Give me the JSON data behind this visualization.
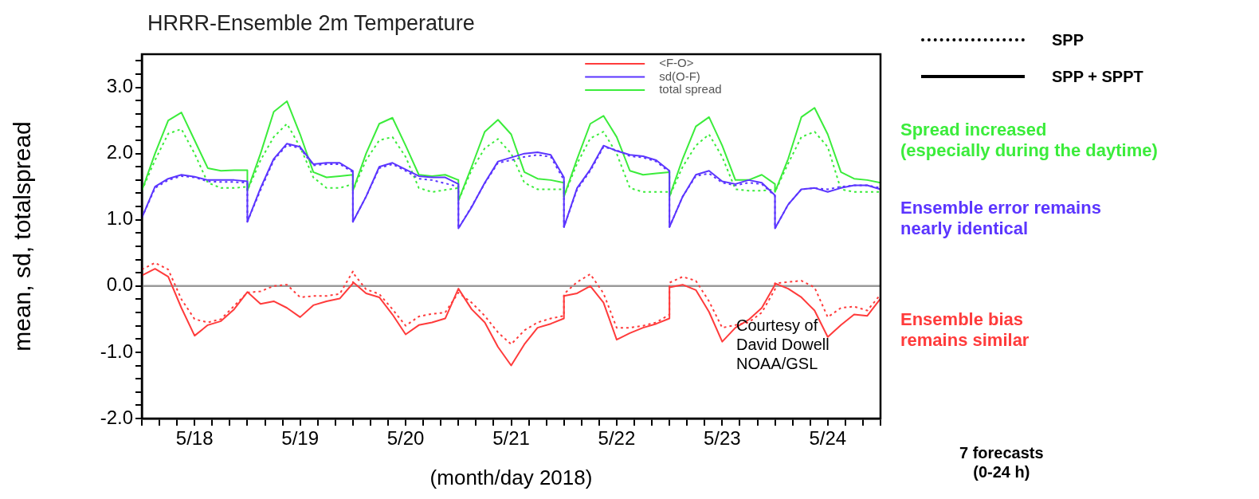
{
  "chart_data": {
    "type": "line",
    "title": "HRRR-Ensemble 2m Temperature",
    "xlabel": "(month/day 2018)",
    "ylabel": "mean, sd, totalspread",
    "x": [
      "2018-05-18T00:00",
      "2018-05-18T03:00",
      "2018-05-18T06:00",
      "2018-05-18T09:00",
      "2018-05-18T12:00",
      "2018-05-18T15:00",
      "2018-05-18T18:00",
      "2018-05-18T21:00",
      "2018-05-19T00:00",
      "2018-05-19T00:00",
      "2018-05-19T03:00",
      "2018-05-19T06:00",
      "2018-05-19T09:00",
      "2018-05-19T12:00",
      "2018-05-19T15:00",
      "2018-05-19T18:00",
      "2018-05-19T21:00",
      "2018-05-20T00:00",
      "2018-05-20T00:00",
      "2018-05-20T03:00",
      "2018-05-20T06:00",
      "2018-05-20T09:00",
      "2018-05-20T12:00",
      "2018-05-20T15:00",
      "2018-05-20T18:00",
      "2018-05-20T21:00",
      "2018-05-21T00:00",
      "2018-05-21T00:00",
      "2018-05-21T03:00",
      "2018-05-21T06:00",
      "2018-05-21T09:00",
      "2018-05-21T12:00",
      "2018-05-21T15:00",
      "2018-05-21T18:00",
      "2018-05-21T21:00",
      "2018-05-22T00:00",
      "2018-05-22T00:00",
      "2018-05-22T03:00",
      "2018-05-22T06:00",
      "2018-05-22T09:00",
      "2018-05-22T12:00",
      "2018-05-22T15:00",
      "2018-05-22T18:00",
      "2018-05-22T21:00",
      "2018-05-23T00:00",
      "2018-05-23T00:00",
      "2018-05-23T03:00",
      "2018-05-23T06:00",
      "2018-05-23T09:00",
      "2018-05-23T12:00",
      "2018-05-23T15:00",
      "2018-05-23T18:00",
      "2018-05-23T21:00",
      "2018-05-24T00:00",
      "2018-05-24T00:00",
      "2018-05-24T03:00",
      "2018-05-24T06:00",
      "2018-05-24T09:00",
      "2018-05-24T12:00",
      "2018-05-24T15:00",
      "2018-05-24T18:00",
      "2018-05-24T21:00",
      "2018-05-25T00:00"
    ],
    "series": [
      {
        "name": "<F-O>",
        "color": "#ff3b3b",
        "line_style": "solid",
        "values": [
          0.16,
          0.26,
          0.14,
          -0.33,
          -0.75,
          -0.59,
          -0.53,
          -0.35,
          -0.09,
          -0.09,
          -0.27,
          -0.23,
          -0.33,
          -0.47,
          -0.29,
          -0.23,
          -0.19,
          0.04,
          0.06,
          -0.11,
          -0.17,
          -0.43,
          -0.73,
          -0.59,
          -0.55,
          -0.49,
          -0.04,
          -0.04,
          -0.35,
          -0.55,
          -0.92,
          -1.2,
          -0.88,
          -0.63,
          -0.57,
          -0.49,
          -0.15,
          -0.11,
          0.0,
          -0.25,
          -0.81,
          -0.71,
          -0.63,
          -0.57,
          -0.49,
          -0.02,
          0.02,
          -0.06,
          -0.39,
          -0.84,
          -0.63,
          -0.51,
          -0.33,
          0.02,
          0.04,
          -0.04,
          -0.17,
          -0.37,
          -0.77,
          -0.59,
          -0.43,
          -0.45,
          -0.19
        ]
      },
      {
        "name": "sd(O-F)",
        "color": "#5b35ff",
        "line_style": "solid",
        "values": [
          1.03,
          1.5,
          1.62,
          1.68,
          1.65,
          1.6,
          1.6,
          1.6,
          1.58,
          0.97,
          1.48,
          1.92,
          2.15,
          2.1,
          1.84,
          1.86,
          1.86,
          1.74,
          0.97,
          1.35,
          1.8,
          1.86,
          1.76,
          1.66,
          1.64,
          1.64,
          1.54,
          0.87,
          1.19,
          1.56,
          1.88,
          1.94,
          2.0,
          2.02,
          1.98,
          1.64,
          0.89,
          1.48,
          1.76,
          2.12,
          2.04,
          1.98,
          1.96,
          1.9,
          1.74,
          0.89,
          1.35,
          1.68,
          1.74,
          1.58,
          1.54,
          1.6,
          1.56,
          1.37,
          0.87,
          1.23,
          1.46,
          1.48,
          1.42,
          1.48,
          1.52,
          1.52,
          1.46
        ]
      },
      {
        "name": "total spread",
        "color": "#3bec3b",
        "line_style": "solid",
        "values": [
          1.44,
          2.0,
          2.5,
          2.62,
          2.2,
          1.78,
          1.74,
          1.75,
          1.75,
          1.44,
          2.0,
          2.63,
          2.79,
          2.29,
          1.72,
          1.64,
          1.66,
          1.68,
          1.44,
          2.0,
          2.45,
          2.54,
          2.12,
          1.68,
          1.66,
          1.68,
          1.6,
          1.29,
          1.8,
          2.33,
          2.51,
          2.29,
          1.72,
          1.62,
          1.6,
          1.56,
          1.35,
          1.92,
          2.45,
          2.57,
          2.25,
          1.74,
          1.68,
          1.7,
          1.72,
          1.35,
          1.92,
          2.41,
          2.55,
          2.12,
          1.6,
          1.6,
          1.68,
          1.54,
          1.42,
          1.92,
          2.55,
          2.69,
          2.29,
          1.72,
          1.62,
          1.6,
          1.56
        ]
      },
      {
        "color": "#ff3b3b",
        "line_style": "dotted",
        "values": [
          0.25,
          0.35,
          0.25,
          -0.2,
          -0.5,
          -0.55,
          -0.5,
          -0.3,
          -0.1,
          -0.1,
          -0.08,
          0.0,
          0.02,
          -0.17,
          -0.15,
          -0.15,
          -0.12,
          0.22,
          0.2,
          -0.05,
          -0.12,
          -0.35,
          -0.6,
          -0.46,
          -0.42,
          -0.4,
          -0.1,
          -0.1,
          -0.25,
          -0.45,
          -0.7,
          -0.88,
          -0.67,
          -0.55,
          -0.49,
          -0.45,
          -0.12,
          0.06,
          0.18,
          -0.11,
          -0.63,
          -0.63,
          -0.6,
          -0.55,
          -0.43,
          0.05,
          0.14,
          0.08,
          -0.23,
          -0.63,
          -0.59,
          -0.55,
          -0.4,
          -0.05,
          0.04,
          0.06,
          0.08,
          -0.02,
          -0.47,
          -0.33,
          -0.31,
          -0.37,
          -0.13
        ]
      },
      {
        "color": "#5b35ff",
        "line_style": "dotted",
        "values": [
          1.03,
          1.48,
          1.6,
          1.66,
          1.64,
          1.58,
          1.57,
          1.57,
          1.56,
          0.97,
          1.45,
          1.9,
          2.13,
          2.08,
          1.82,
          1.84,
          1.84,
          1.72,
          0.97,
          1.35,
          1.78,
          1.84,
          1.74,
          1.62,
          1.6,
          1.55,
          1.5,
          0.87,
          1.2,
          1.55,
          1.86,
          1.9,
          1.95,
          1.98,
          1.95,
          1.6,
          0.89,
          1.46,
          1.74,
          2.1,
          2.05,
          1.96,
          1.94,
          1.88,
          1.72,
          0.89,
          1.35,
          1.66,
          1.7,
          1.56,
          1.52,
          1.56,
          1.54,
          1.36,
          0.87,
          1.23,
          1.46,
          1.48,
          1.46,
          1.5,
          1.52,
          1.52,
          1.48
        ]
      },
      {
        "color": "#3bec3b",
        "line_style": "dotted",
        "values": [
          1.44,
          1.9,
          2.3,
          2.37,
          2.0,
          1.56,
          1.48,
          1.48,
          1.5,
          1.44,
          1.9,
          2.25,
          2.45,
          2.1,
          1.64,
          1.48,
          1.48,
          1.54,
          1.44,
          1.9,
          2.2,
          2.25,
          1.95,
          1.48,
          1.42,
          1.45,
          1.48,
          1.29,
          1.75,
          2.08,
          2.22,
          2.0,
          1.56,
          1.46,
          1.46,
          1.46,
          1.35,
          1.85,
          2.23,
          2.33,
          2.0,
          1.48,
          1.42,
          1.42,
          1.42,
          1.35,
          1.8,
          2.12,
          2.29,
          1.95,
          1.46,
          1.44,
          1.44,
          1.46,
          1.42,
          1.85,
          2.25,
          2.33,
          2.1,
          1.46,
          1.42,
          1.42,
          1.42
        ]
      }
    ],
    "xlim": [
      "2018-05-18T00:00",
      "2018-05-25T00:00"
    ],
    "xticks": [
      {
        "value": "2018-05-18T00:00",
        "label": null
      },
      {
        "value": "2018-05-18T04:00",
        "label": null
      },
      {
        "value": "2018-05-18T08:00",
        "label": null
      },
      {
        "value": "2018-05-18T12:00",
        "label": "5/18"
      },
      {
        "value": "2018-05-18T16:00",
        "label": null
      },
      {
        "value": "2018-05-18T20:00",
        "label": null
      },
      {
        "value": "2018-05-19T00:00",
        "label": null
      },
      {
        "value": "2018-05-19T04:00",
        "label": null
      },
      {
        "value": "2018-05-19T08:00",
        "label": null
      },
      {
        "value": "2018-05-19T12:00",
        "label": "5/19"
      },
      {
        "value": "2018-05-19T16:00",
        "label": null
      },
      {
        "value": "2018-05-19T20:00",
        "label": null
      },
      {
        "value": "2018-05-20T00:00",
        "label": null
      },
      {
        "value": "2018-05-20T04:00",
        "label": null
      },
      {
        "value": "2018-05-20T08:00",
        "label": null
      },
      {
        "value": "2018-05-20T12:00",
        "label": "5/20"
      },
      {
        "value": "2018-05-20T16:00",
        "label": null
      },
      {
        "value": "2018-05-20T20:00",
        "label": null
      },
      {
        "value": "2018-05-21T00:00",
        "label": null
      },
      {
        "value": "2018-05-21T04:00",
        "label": null
      },
      {
        "value": "2018-05-21T08:00",
        "label": null
      },
      {
        "value": "2018-05-21T12:00",
        "label": "5/21"
      },
      {
        "value": "2018-05-21T16:00",
        "label": null
      },
      {
        "value": "2018-05-21T20:00",
        "label": null
      },
      {
        "value": "2018-05-22T00:00",
        "label": null
      },
      {
        "value": "2018-05-22T04:00",
        "label": null
      },
      {
        "value": "2018-05-22T08:00",
        "label": null
      },
      {
        "value": "2018-05-22T12:00",
        "label": "5/22"
      },
      {
        "value": "2018-05-22T16:00",
        "label": null
      },
      {
        "value": "2018-05-22T20:00",
        "label": null
      },
      {
        "value": "2018-05-23T00:00",
        "label": null
      },
      {
        "value": "2018-05-23T04:00",
        "label": null
      },
      {
        "value": "2018-05-23T08:00",
        "label": null
      },
      {
        "value": "2018-05-23T12:00",
        "label": "5/23"
      },
      {
        "value": "2018-05-23T16:00",
        "label": null
      },
      {
        "value": "2018-05-23T20:00",
        "label": null
      },
      {
        "value": "2018-05-24T00:00",
        "label": null
      },
      {
        "value": "2018-05-24T04:00",
        "label": null
      },
      {
        "value": "2018-05-24T08:00",
        "label": null
      },
      {
        "value": "2018-05-24T12:00",
        "label": "5/24"
      },
      {
        "value": "2018-05-24T16:00",
        "label": null
      },
      {
        "value": "2018-05-24T20:00",
        "label": null
      },
      {
        "value": "2018-05-25T00:00",
        "label": null
      }
    ],
    "ylim": [
      -2,
      3.5
    ],
    "yticks": [
      {
        "value": -2,
        "label": "-2.0"
      },
      {
        "value": -1.8,
        "label": null
      },
      {
        "value": -1.6,
        "label": null
      },
      {
        "value": -1.4,
        "label": null
      },
      {
        "value": -1.2,
        "label": null
      },
      {
        "value": -1,
        "label": "-1.0"
      },
      {
        "value": -0.8,
        "label": null
      },
      {
        "value": -0.6,
        "label": null
      },
      {
        "value": -0.4,
        "label": null
      },
      {
        "value": -0.2,
        "label": null
      },
      {
        "value": 0,
        "label": "0.0"
      },
      {
        "value": 0.2,
        "label": null
      },
      {
        "value": 0.4,
        "label": null
      },
      {
        "value": 0.6,
        "label": null
      },
      {
        "value": 0.8,
        "label": null
      },
      {
        "value": 1,
        "label": "1.0"
      },
      {
        "value": 1.2,
        "label": null
      },
      {
        "value": 1.4,
        "label": null
      },
      {
        "value": 1.6,
        "label": null
      },
      {
        "value": 1.8,
        "label": null
      },
      {
        "value": 2,
        "label": "2.0"
      },
      {
        "value": 2.2,
        "label": null
      },
      {
        "value": 2.4,
        "label": null
      },
      {
        "value": 2.6,
        "label": null
      },
      {
        "value": 2.8,
        "label": null
      },
      {
        "value": 3,
        "label": "3.0"
      },
      {
        "value": 3.2,
        "label": null
      },
      {
        "value": 3.4,
        "label": null
      }
    ],
    "ref_lines": [
      {
        "axis": "y",
        "value": 0,
        "color": "#999999"
      }
    ],
    "legend": "top",
    "annotations": [
      "SPP",
      "SPP + SPPT",
      "Spread increased\n(especially during the daytime)",
      "Ensemble error remains\nnearly identical",
      "Ensemble bias\nremains similar",
      "Courtesy of\nDavid Dowell\nNOAA/GSL",
      "7 forecasts\n(0-24 h)"
    ]
  }
}
